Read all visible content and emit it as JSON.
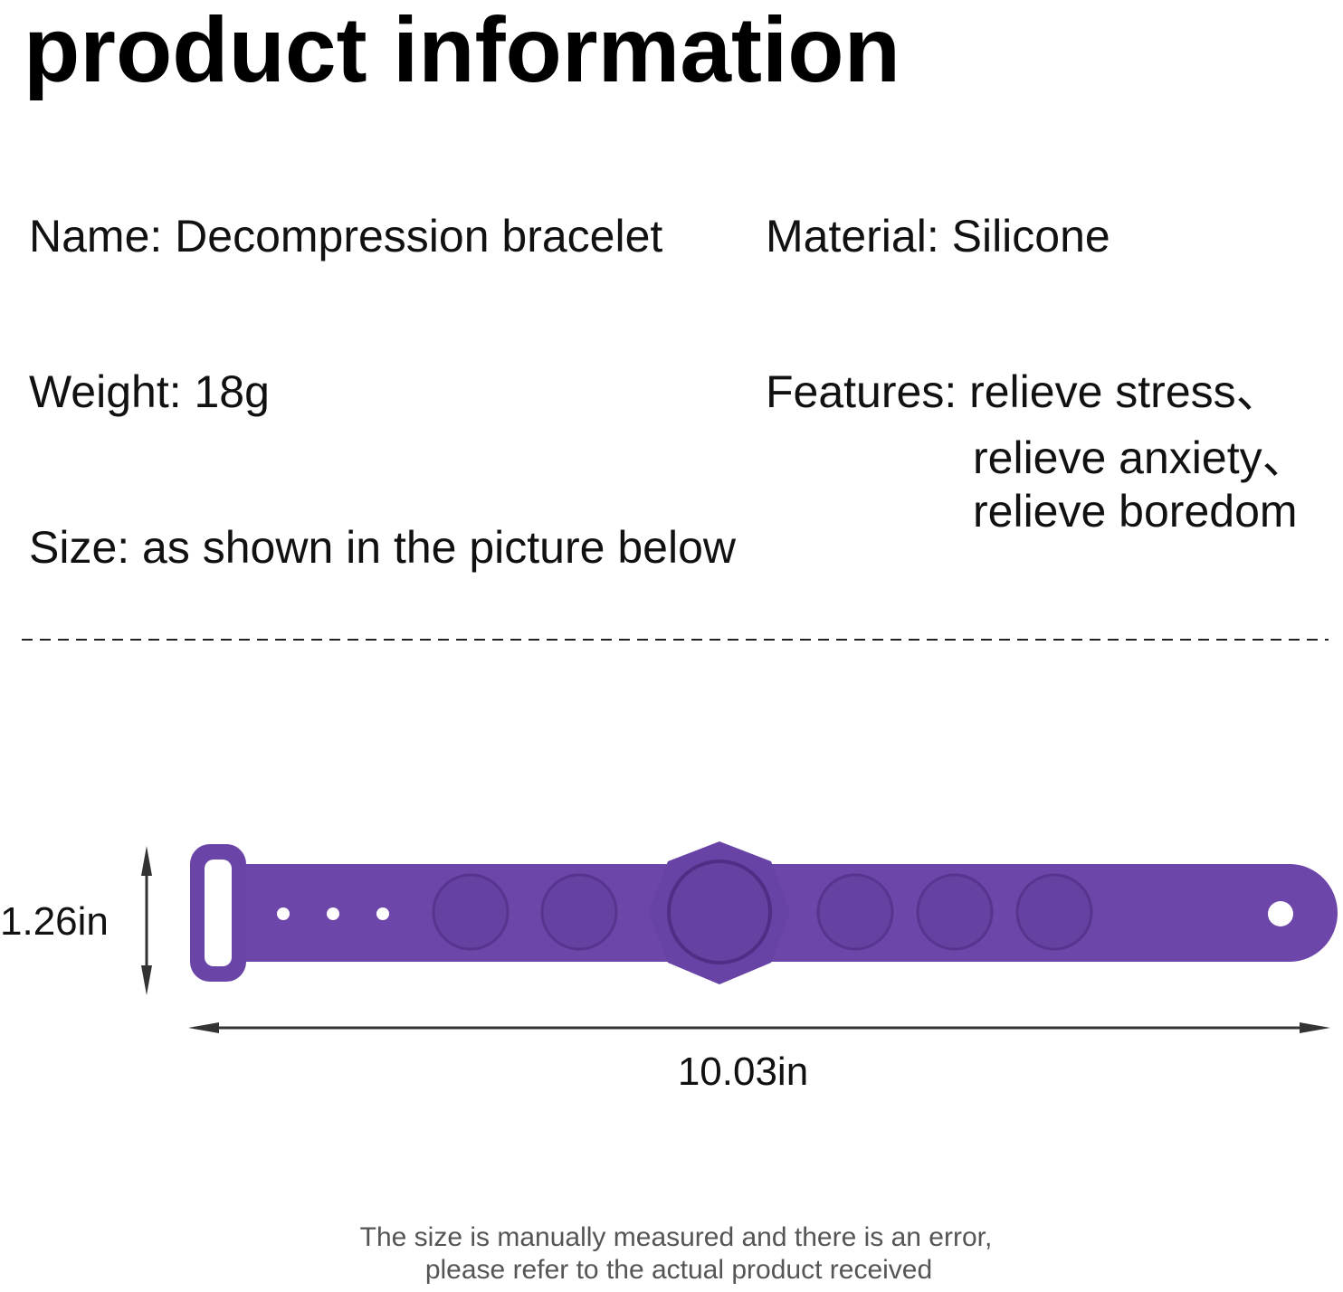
{
  "header": {
    "title": "product information"
  },
  "specs": {
    "name": "Name: Decompression bracelet",
    "material": "Material: Silicone",
    "weight": "Weight: 18g",
    "features": [
      "Features: relieve stress、",
      "relieve anxiety、",
      "relieve boredom"
    ],
    "size": "Size: as shown in the picture below"
  },
  "dimensions": {
    "height": "1.26in",
    "width": "10.03in"
  },
  "note": [
    "The size is manually measured and there is an error,",
    "please refer to the actual product received"
  ]
}
